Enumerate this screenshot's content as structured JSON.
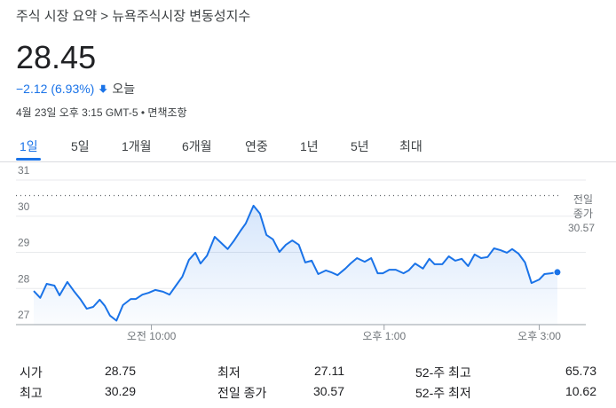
{
  "header": {
    "breadcrumb": "주식 시장 요약 > 뉴욕주식시장 변동성지수",
    "price": "28.45",
    "change": "−2.12 (6.93%)",
    "period": "오늘",
    "timestamp": "4월 23일 오후 3:15 GMT-5 • 면책조항"
  },
  "tabs": {
    "items": [
      "1일",
      "5일",
      "1개월",
      "6개월",
      "연중",
      "1년",
      "5년",
      "최대"
    ],
    "active": 0
  },
  "chart_data": {
    "type": "line",
    "color": "#1a73e8",
    "x": [
      509,
      514,
      519,
      525,
      529,
      535,
      540,
      545,
      550,
      555,
      560,
      564,
      568,
      573,
      578,
      584,
      588,
      593,
      598,
      603,
      609,
      614,
      619,
      624,
      629,
      634,
      638,
      643,
      649,
      654,
      659,
      664,
      669,
      673,
      679,
      684,
      689,
      694,
      699,
      704,
      709,
      714,
      719,
      724,
      729,
      735,
      739,
      744,
      750,
      754,
      759,
      765,
      770,
      775,
      779,
      784,
      789,
      795,
      799,
      804,
      810,
      815,
      819,
      825,
      830,
      835,
      840,
      845,
      850,
      855,
      860,
      865,
      870,
      875,
      879,
      884,
      889,
      894,
      900,
      904,
      909,
      914
    ],
    "values": [
      27.93,
      27.74,
      28.13,
      28.08,
      27.81,
      28.18,
      27.93,
      27.71,
      27.44,
      27.49,
      27.69,
      27.52,
      27.25,
      27.11,
      27.54,
      27.71,
      27.71,
      27.83,
      27.88,
      27.96,
      27.91,
      27.83,
      28.08,
      28.33,
      28.79,
      28.99,
      28.69,
      28.91,
      29.43,
      29.26,
      29.09,
      29.33,
      29.6,
      29.8,
      30.29,
      30.07,
      29.48,
      29.36,
      29.01,
      29.21,
      29.33,
      29.21,
      28.72,
      28.77,
      28.4,
      28.5,
      28.45,
      28.37,
      28.55,
      28.69,
      28.84,
      28.74,
      28.84,
      28.42,
      28.42,
      28.52,
      28.52,
      28.42,
      28.5,
      28.69,
      28.55,
      28.82,
      28.67,
      28.67,
      28.89,
      28.77,
      28.82,
      28.62,
      28.94,
      28.84,
      28.87,
      29.11,
      29.06,
      28.99,
      29.09,
      28.96,
      28.72,
      28.15,
      28.25,
      28.4,
      28.42,
      28.45
    ],
    "xlim": [
      509,
      936
    ],
    "xticks": [
      {
        "value": 600,
        "label": "오전 10:00"
      },
      {
        "value": 780,
        "label": "오후 1:00"
      },
      {
        "value": 900,
        "label": "오후 3:00"
      }
    ],
    "ylim": [
      27,
      31
    ],
    "yticks": [
      27,
      28,
      29,
      30,
      31
    ],
    "grid": true,
    "prev_close": 30.57,
    "prev_close_label": "전일 종가"
  },
  "stats": {
    "rows": [
      [
        "시가",
        "28.75",
        "최저",
        "27.11",
        "52-주 최고",
        "65.73"
      ],
      [
        "최고",
        "30.29",
        "전일 종가",
        "30.57",
        "52-주 최저",
        "10.62"
      ]
    ]
  }
}
